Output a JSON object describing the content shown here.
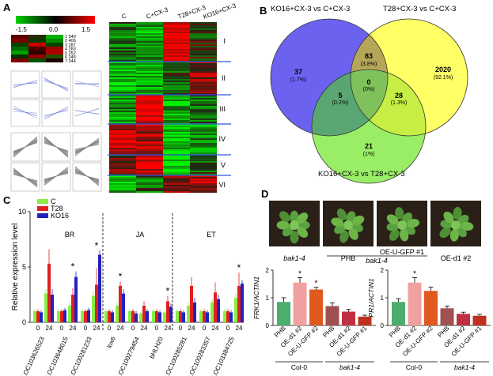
{
  "panelA": {
    "label": "A",
    "colorbar": {
      "min": "-1.5",
      "mid": "0.0",
      "max": "1.5"
    },
    "mini_list": [
      "1 540",
      "2 406",
      "3 287",
      "4 283",
      "5 252",
      "6 245",
      "7 244"
    ],
    "columns": [
      "C",
      "C+CX-3",
      "T28+CX-3",
      "KO16+CX-3"
    ],
    "clusters": [
      "I",
      "II",
      "III",
      "IV",
      "V",
      "VI"
    ]
  },
  "panelB": {
    "label": "B",
    "sets": [
      "KO16+CX-3 vs C+CX-3",
      "T28+CX-3 vs C+CX-3",
      "KO16+CX-3 vs T28+CX-3"
    ],
    "regions": [
      {
        "count": "37",
        "pct": "(1.7%)"
      },
      {
        "count": "83",
        "pct": "(3.8%)"
      },
      {
        "count": "2020",
        "pct": "(92.1%)"
      },
      {
        "count": "0",
        "pct": "(0%)"
      },
      {
        "count": "5",
        "pct": "(0.2%)"
      },
      {
        "count": "28",
        "pct": "(1.3%)"
      },
      {
        "count": "21",
        "pct": "(1%)"
      }
    ],
    "colors": {
      "set1": "#6b63f0",
      "set2": "#ffff66",
      "set3": "#99ee66"
    }
  },
  "panelC": {
    "label": "C",
    "legend": [
      {
        "name": "C",
        "color": "#88ee44"
      },
      {
        "name": "T28",
        "color": "#e02020"
      },
      {
        "name": "KO16",
        "color": "#2222bb"
      }
    ],
    "groups": [
      "BR",
      "JA",
      "ET"
    ],
    "ylabel": "Relative expression level",
    "yticks": [
      "0",
      "5",
      "10"
    ],
    "timepoints": [
      "0",
      "24"
    ],
    "genes": [
      "LOC103626523",
      "LOC103648015",
      "LOC100281233",
      "lox6",
      "LOC100279454",
      "bHLH20",
      "LOC100285281",
      "LOC100283357",
      "LOC103384725"
    ]
  },
  "chart_data": [
    {
      "type": "bar",
      "ylabel": "Relative expression level",
      "ylim": [
        0,
        10
      ],
      "categories": [
        "LOC103626523 0",
        "LOC103626523 24",
        "LOC103648015 0",
        "LOC103648015 24",
        "LOC100281233 0",
        "LOC100281233 24",
        "lox6 0",
        "lox6 24",
        "LOC100279454 0",
        "LOC100279454 24",
        "bHLH20 0",
        "bHLH20 24",
        "LOC100285281 0",
        "LOC100285281 24",
        "LOC100283357 0",
        "LOC100283357 24",
        "LOC103384725 0",
        "LOC103384725 24"
      ],
      "series": [
        {
          "name": "C",
          "values": [
            1.0,
            2.6,
            1.0,
            1.5,
            1.0,
            2.4,
            1.0,
            1.5,
            1.0,
            0.8,
            1.0,
            0.9,
            1.0,
            1.5,
            1.0,
            1.8,
            1.0,
            2.2
          ]
        },
        {
          "name": "T28",
          "values": [
            1.0,
            5.3,
            1.0,
            2.5,
            1.0,
            3.4,
            1.0,
            3.3,
            1.0,
            1.5,
            1.0,
            1.9,
            1.0,
            3.3,
            1.0,
            2.7,
            1.0,
            3.3
          ]
        },
        {
          "name": "KO16",
          "values": [
            0.9,
            2.5,
            1.1,
            4.1,
            1.1,
            6.1,
            0.9,
            2.6,
            0.8,
            1.0,
            0.9,
            1.4,
            0.9,
            1.8,
            0.9,
            2.1,
            0.9,
            3.5
          ]
        }
      ],
      "errors": {
        "C": [
          0.2,
          0.4,
          0.2,
          0.3,
          0.2,
          0.4,
          0.2,
          0.3,
          0.2,
          0.2,
          0.2,
          0.2,
          0.2,
          0.3,
          0.2,
          0.3,
          0.2,
          0.4
        ],
        "T28": [
          0.2,
          1.3,
          0.2,
          0.6,
          0.2,
          1.5,
          0.2,
          0.4,
          0.2,
          0.4,
          0.2,
          0.5,
          0.2,
          0.8,
          0.2,
          0.9,
          0.2,
          1.2
        ],
        "KO16": [
          0.2,
          0.5,
          0.2,
          0.5,
          0.2,
          0.4,
          0.2,
          0.4,
          0.2,
          0.2,
          0.2,
          0.3,
          0.2,
          0.4,
          0.2,
          0.4,
          0.2,
          0.3
        ]
      },
      "significance": [
        {
          "category": "LOC103648015 24",
          "mark": "*"
        },
        {
          "category": "LOC100281233 24",
          "mark": "*"
        },
        {
          "category": "lox6 24",
          "mark": "*"
        },
        {
          "category": "bHLH20 24",
          "mark": "*"
        },
        {
          "category": "LOC103384725 24",
          "mark": "*"
        }
      ]
    },
    {
      "type": "bar",
      "ylabel": "FRK1/ACTIN1",
      "ylim": [
        0,
        2
      ],
      "categories": [
        "PHB",
        "OE-d1 #2",
        "OE-U-GFP #2",
        "PHB",
        "OE-d1 #2",
        "OE-U-GFP #1"
      ],
      "groups": [
        "Col-0",
        "bak1-4"
      ],
      "values": [
        0.85,
        1.55,
        1.3,
        0.7,
        0.5,
        0.32
      ],
      "errors": [
        0.15,
        0.18,
        0.08,
        0.12,
        0.08,
        0.05
      ],
      "significance": [
        "",
        "*",
        "*",
        "",
        "",
        ""
      ]
    },
    {
      "type": "bar",
      "ylabel": "PR1/ACTIN1",
      "ylim": [
        0,
        2
      ],
      "categories": [
        "PHB",
        "OE-d1 #2",
        "OE-U-GFP #2",
        "PHB",
        "OE-d1 #2",
        "OE-U-GFP #1"
      ],
      "groups": [
        "Col-0",
        "bak1-4"
      ],
      "values": [
        0.85,
        1.55,
        1.25,
        0.62,
        0.42,
        0.35
      ],
      "errors": [
        0.12,
        0.18,
        0.14,
        0.08,
        0.06,
        0.05
      ],
      "significance": [
        "",
        "*",
        "",
        "",
        "",
        ""
      ]
    }
  ],
  "panelD": {
    "label": "D",
    "photo_labels": [
      "bak1-4",
      "PHB",
      "OE-U-GFP #1",
      "OE-d1 #2"
    ],
    "photo_group": "bak1-4",
    "frk_ylabel": "FRK1/ACTIN1",
    "pr_ylabel": "PR1/ACTIN1",
    "yticks": [
      "0",
      "1",
      "2"
    ],
    "xlabels": [
      "PHB",
      "OE-d1 #2",
      "OE-U-GFP #2",
      "PHB",
      "OE-d1 #2",
      "OE-U-GFP #1"
    ],
    "groups": [
      "Col-0",
      "bak1-4"
    ],
    "bar_colors": [
      "#4cae6c",
      "#f0a0a0",
      "#e05a20",
      "#a05050",
      "#c03040",
      "#c03020"
    ]
  }
}
